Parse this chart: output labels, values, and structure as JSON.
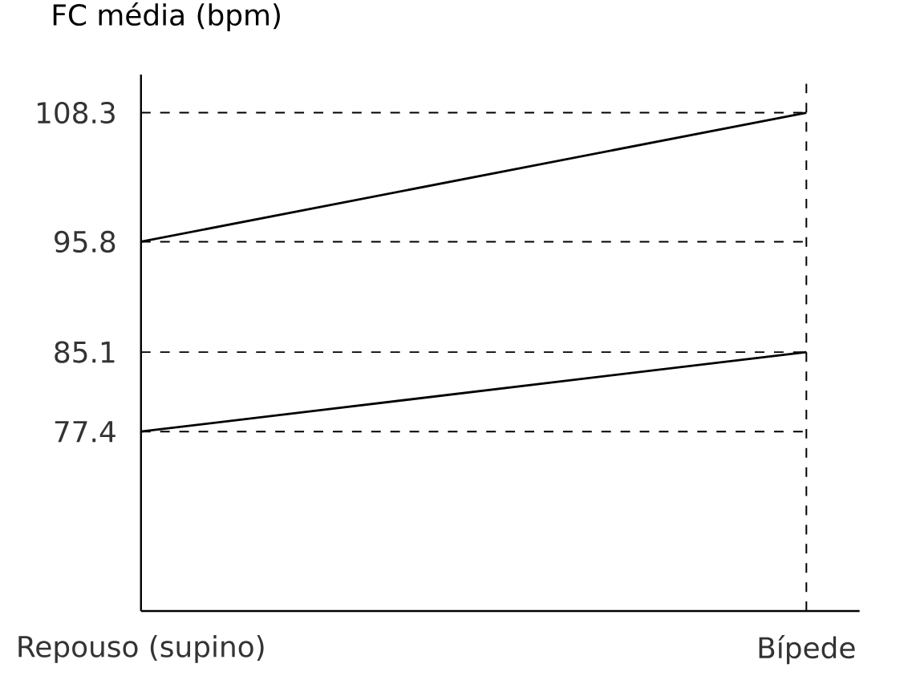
{
  "chart_data": {
    "type": "line",
    "ylabel": "FC média (bpm)",
    "categories": [
      "Repouso (supino)",
      "Bípede"
    ],
    "series": [
      {
        "color": "#000000",
        "values": [
          95.8,
          108.3
        ]
      },
      {
        "color": "#000000",
        "values": [
          77.4,
          85.1
        ]
      }
    ],
    "ylim": [
      60,
      112
    ],
    "yticks": [
      77.4,
      85.1,
      95.8,
      108.3
    ],
    "ref_lines": [
      {
        "axis": "y",
        "value": 108.3,
        "line_style": "dashed"
      },
      {
        "axis": "y",
        "value": 95.8,
        "line_style": "dashed"
      },
      {
        "axis": "y",
        "value": 85.1,
        "line_style": "dashed"
      },
      {
        "axis": "y",
        "value": 77.4,
        "line_style": "dashed"
      },
      {
        "axis": "x",
        "value": "Bípede",
        "line_style": "dashed"
      }
    ],
    "marker": "none",
    "line_style": "solid",
    "grid": false
  }
}
